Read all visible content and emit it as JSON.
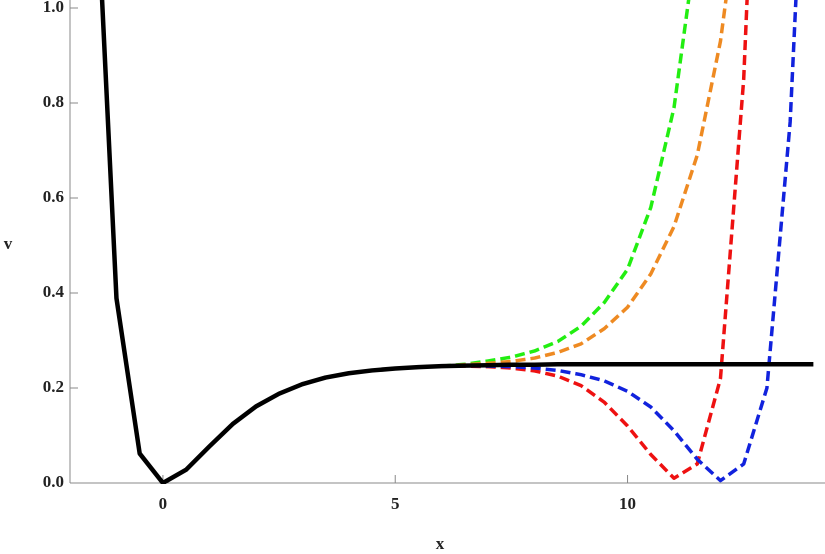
{
  "chart_data": {
    "type": "line",
    "xlabel": "x",
    "ylabel": "v",
    "x": [
      -1.5,
      -1,
      -0.5,
      0,
      0.5,
      1,
      1.5,
      2,
      2.5,
      3,
      3.5,
      4,
      4.5,
      5,
      5.5,
      6,
      6.5,
      7,
      7.5,
      8,
      8.5,
      9,
      9.5,
      10,
      10.5,
      11,
      11.5,
      12,
      12.5,
      13,
      13.5,
      14
    ],
    "series": [
      {
        "color": "#22ee11",
        "line_style": "dashed",
        "values": [
          1.404,
          0.389,
          0.062,
          0,
          0.028,
          0.077,
          0.124,
          0.161,
          0.188,
          0.208,
          0.222,
          0.231,
          0.237,
          0.241,
          0.244,
          0.246,
          0.25,
          0.257,
          0.265,
          0.278,
          0.298,
          0.33,
          0.38,
          0.45,
          0.58,
          0.79,
          1.15,
          null,
          null,
          null,
          null,
          null
        ]
      },
      {
        "color": "#ee8a22",
        "line_style": "dashed",
        "values": [
          1.404,
          0.389,
          0.062,
          0,
          0.028,
          0.077,
          0.124,
          0.161,
          0.188,
          0.208,
          0.222,
          0.231,
          0.237,
          0.241,
          0.244,
          0.246,
          0.249,
          0.252,
          0.256,
          0.263,
          0.275,
          0.293,
          0.325,
          0.37,
          0.44,
          0.54,
          0.69,
          0.93,
          1.3,
          null,
          null,
          null
        ]
      },
      {
        "color": "#ee1111",
        "line_style": "dashed",
        "values": [
          1.404,
          0.389,
          0.062,
          0,
          0.028,
          0.077,
          0.124,
          0.161,
          0.188,
          0.208,
          0.222,
          0.231,
          0.237,
          0.241,
          0.244,
          0.246,
          0.246,
          0.245,
          0.242,
          0.236,
          0.225,
          0.205,
          0.17,
          0.12,
          0.06,
          0.01,
          0.04,
          0.22,
          0.85,
          2.0,
          null,
          null
        ]
      },
      {
        "color": "#1122dd",
        "line_style": "dashed",
        "values": [
          1.404,
          0.389,
          0.062,
          0,
          0.028,
          0.077,
          0.124,
          0.161,
          0.188,
          0.208,
          0.222,
          0.231,
          0.237,
          0.241,
          0.244,
          0.246,
          0.247,
          0.246,
          0.245,
          0.242,
          0.237,
          0.228,
          0.215,
          0.193,
          0.16,
          0.11,
          0.05,
          0.005,
          0.04,
          0.2,
          0.76,
          1.8
        ]
      },
      {
        "color": "#000000",
        "line_style": "solid",
        "values": [
          1.404,
          0.389,
          0.062,
          0,
          0.028,
          0.077,
          0.124,
          0.161,
          0.188,
          0.208,
          0.222,
          0.231,
          0.237,
          0.241,
          0.244,
          0.246,
          0.247,
          0.248,
          0.249,
          0.249,
          0.25,
          0.25,
          0.25,
          0.25,
          0.25,
          0.25,
          0.25,
          0.25,
          0.25,
          0.25,
          0.25,
          0.25
        ]
      }
    ],
    "xlim": [
      -2,
      14.25
    ],
    "ylim": [
      0,
      1
    ],
    "xticks": [
      0,
      5,
      10
    ],
    "yticks": [
      {
        "value": 0,
        "label": "0.0"
      },
      {
        "value": 0.2,
        "label": "0.2"
      },
      {
        "value": 0.4,
        "label": "0.4"
      },
      {
        "value": 0.6,
        "label": "0.6"
      },
      {
        "value": 0.8,
        "label": "0.8"
      },
      {
        "value": 1,
        "label": "1.0"
      }
    ]
  }
}
